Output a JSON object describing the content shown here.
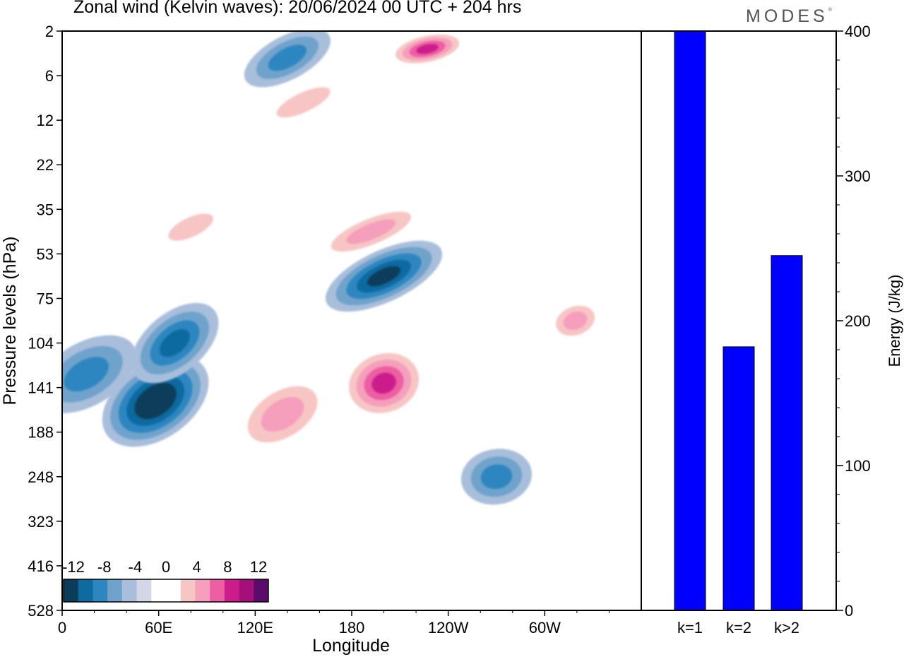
{
  "header": {
    "title": "Zonal wind (Kelvin waves):  20/06/2024  00 UTC  + 204 hrs",
    "brand": "MODES",
    "brand_mark": "®"
  },
  "colors": {
    "energy_bar": "#0000ff",
    "contour_scale": [
      "#0b3d5a",
      "#0f6aa0",
      "#2e86c1",
      "#6fa3cc",
      "#a8bedb",
      "#d3d6e6",
      "#ffffff",
      "#ffffff",
      "#f7c6c4",
      "#f59fbc",
      "#ec5fa3",
      "#cc1c8b",
      "#a40f7a",
      "#5c0b6a"
    ]
  },
  "chart_data": [
    {
      "type": "heatmap",
      "title": "Zonal wind (Kelvin waves):  20/06/2024  00 UTC  + 204 hrs",
      "xlabel": "Longitude",
      "ylabel": "Pressure levels (hPa)",
      "x_ticks": [
        "0",
        "60E",
        "120E",
        "180",
        "120W",
        "60W"
      ],
      "y_ticks": [
        "2",
        "6",
        "12",
        "22",
        "35",
        "53",
        "75",
        "104",
        "141",
        "188",
        "248",
        "323",
        "416",
        "528"
      ],
      "colorbar": {
        "labels": [
          "-12",
          "-8",
          "-4",
          "0",
          "4",
          "8",
          "12"
        ],
        "levels": [
          -12,
          -10,
          -8,
          -6,
          -4,
          -2,
          0,
          2,
          4,
          6,
          8,
          10,
          12,
          14
        ]
      },
      "features": [
        {
          "lon": 58,
          "level_index": 8.3,
          "value": -13
        },
        {
          "lon": 70,
          "level_index": 7.0,
          "value": -9
        },
        {
          "lon": 15,
          "level_index": 7.7,
          "value": -6
        },
        {
          "lon": 200,
          "level_index": 5.5,
          "value": -10
        },
        {
          "lon": 140,
          "level_index": 0.6,
          "value": -7
        },
        {
          "lon": 200,
          "level_index": 7.9,
          "value": 11
        },
        {
          "lon": 137,
          "level_index": 8.6,
          "value": 7
        },
        {
          "lon": 192,
          "level_index": 4.5,
          "value": 6
        },
        {
          "lon": 227,
          "level_index": 0.4,
          "value": 11
        },
        {
          "lon": 150,
          "level_index": 1.6,
          "value": 5
        },
        {
          "lon": 319,
          "level_index": 6.5,
          "value": 6
        },
        {
          "lon": 270,
          "level_index": 10.0,
          "value": -6
        },
        {
          "lon": 80,
          "level_index": 4.4,
          "value": 5
        }
      ]
    },
    {
      "type": "bar",
      "categories": [
        "k=1",
        "k=2",
        "k>2"
      ],
      "values": [
        400,
        182,
        245
      ],
      "ylabel": "Energy (J/kg)",
      "ylim": [
        0,
        400
      ],
      "y_ticks": [
        0,
        100,
        200,
        300,
        400
      ]
    }
  ]
}
